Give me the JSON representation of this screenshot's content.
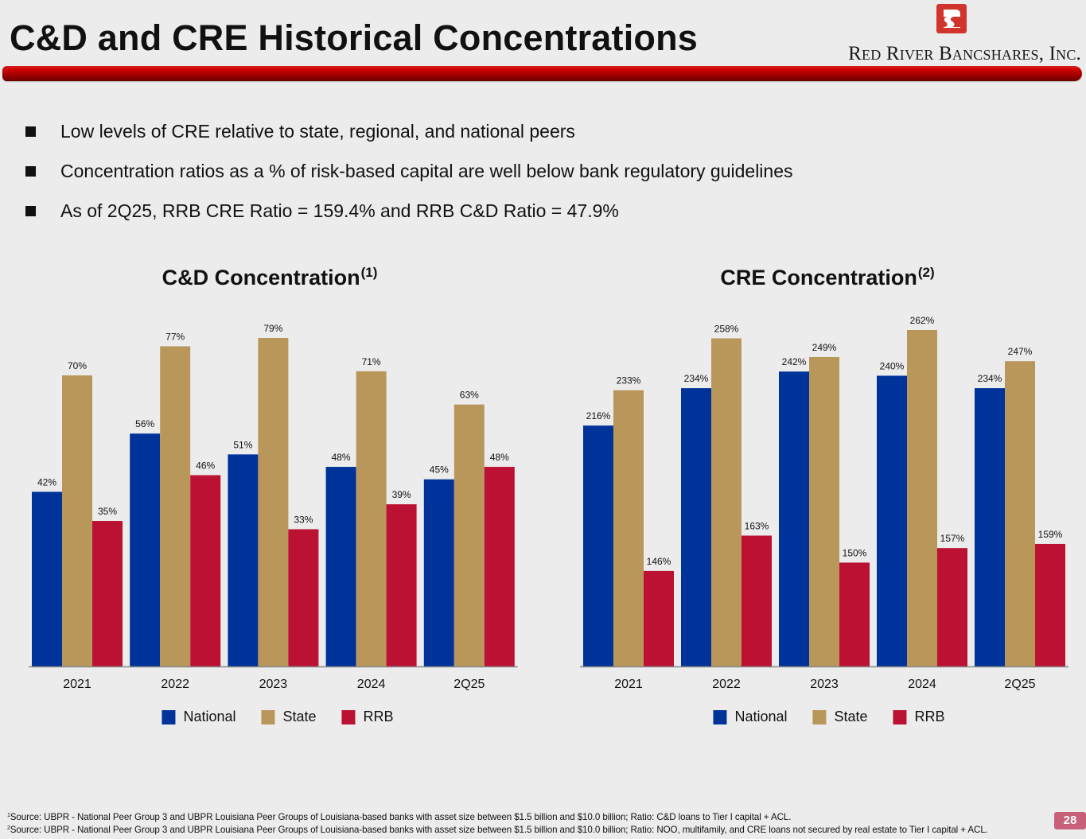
{
  "header": {
    "title": "C&D and CRE Historical Concentrations",
    "company_name": "Red River Bancshares, Inc.",
    "logo_icon": "red-river-logo-icon"
  },
  "bullets": [
    "Low levels of CRE relative to state, regional, and national peers",
    "Concentration ratios as a % of risk-based capital are well below bank regulatory guidelines",
    "As of 2Q25, RRB CRE Ratio = 159.4% and RRB C&D Ratio = 47.9%"
  ],
  "colors": {
    "National": "#003399",
    "State": "#b9975b",
    "RRB": "#bb1133",
    "accent_red": "#c00000",
    "page_badge": "#c9607a"
  },
  "chart_data": [
    {
      "type": "bar",
      "title": "C&D Concentration",
      "title_footnote": "(1)",
      "categories": [
        "2021",
        "2022",
        "2023",
        "2024",
        "2Q25"
      ],
      "series": [
        {
          "name": "National",
          "values": [
            42,
            56,
            51,
            48,
            45
          ],
          "labels": [
            "42%",
            "56%",
            "51%",
            "48%",
            "45%"
          ]
        },
        {
          "name": "State",
          "values": [
            70,
            77,
            79,
            71,
            63
          ],
          "labels": [
            "70%",
            "77%",
            "79%",
            "71%",
            "63%"
          ]
        },
        {
          "name": "RRB",
          "values": [
            35,
            46,
            33,
            39,
            48
          ],
          "labels": [
            "35%",
            "46%",
            "33%",
            "39%",
            "48%"
          ]
        }
      ],
      "xlabel": "",
      "ylabel": "",
      "ylim": [
        0,
        80
      ],
      "grid": false,
      "legend": "bottom",
      "legend_labels": [
        "National",
        "State",
        "RRB"
      ]
    },
    {
      "type": "bar",
      "title": "CRE Concentration",
      "title_footnote": "(2)",
      "categories": [
        "2021",
        "2022",
        "2023",
        "2024",
        "2Q25"
      ],
      "series": [
        {
          "name": "National",
          "values": [
            216,
            234,
            242,
            240,
            234
          ],
          "labels": [
            "216%",
            "234%",
            "242%",
            "240%",
            "234%"
          ]
        },
        {
          "name": "State",
          "values": [
            233,
            258,
            249,
            262,
            247
          ],
          "labels": [
            "233%",
            "258%",
            "249%",
            "262%",
            "247%"
          ]
        },
        {
          "name": "RRB",
          "values": [
            146,
            163,
            150,
            157,
            159
          ],
          "labels": [
            "146%",
            "163%",
            "150%",
            "157%",
            "159%"
          ]
        }
      ],
      "xlabel": "",
      "ylabel": "",
      "ylim": [
        100,
        262
      ],
      "grid": false,
      "legend": "bottom",
      "legend_labels": [
        "National",
        "State",
        "RRB"
      ]
    }
  ],
  "footnotes": [
    {
      "marker": "1",
      "text": "Source: UBPR - National Peer Group 3 and UBPR Louisiana Peer Groups of Louisiana-based banks with asset size between $1.5 billion and $10.0 billion; Ratio: C&D loans to Tier I capital + ACL."
    },
    {
      "marker": "2",
      "text": "Source: UBPR - National Peer Group 3 and UBPR Louisiana Peer Groups of Louisiana-based banks with asset size between $1.5 billion and $10.0 billion; Ratio: NOO, multifamily, and CRE loans not secured by real estate to Tier I capital + ACL."
    }
  ],
  "page_number": "28"
}
